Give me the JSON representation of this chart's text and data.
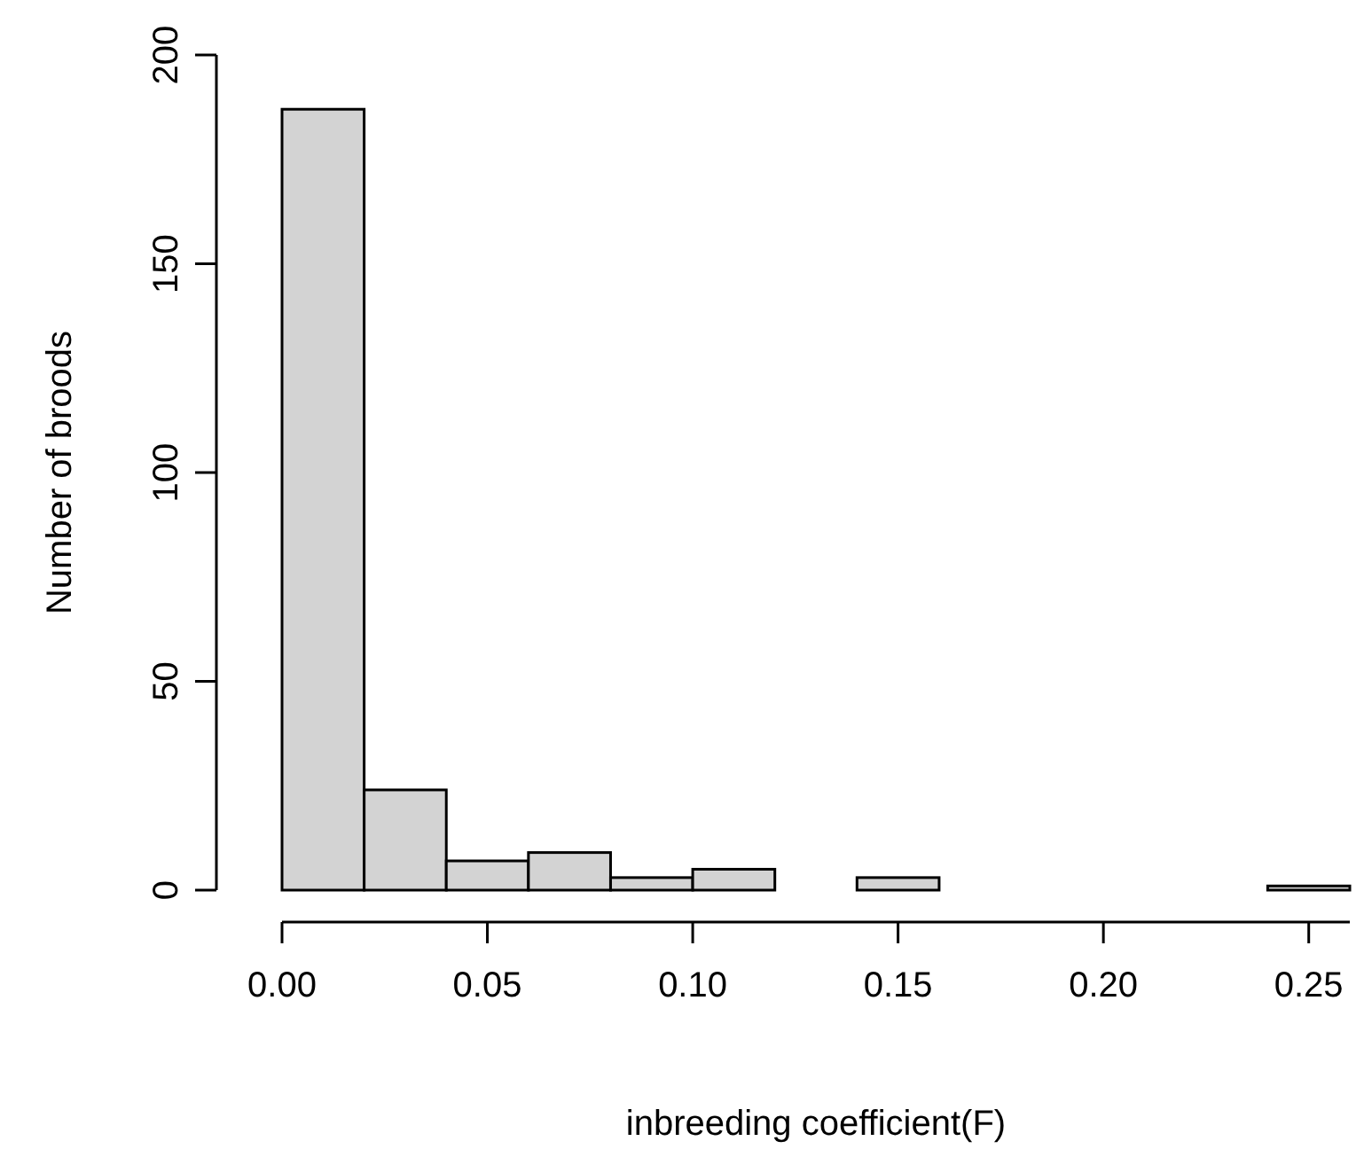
{
  "chart_data": {
    "type": "histogram",
    "xlabel": "inbreeding coefficient(F)",
    "ylabel": "Number of broods",
    "bins": [
      0,
      0.02,
      0.04,
      0.06,
      0.08,
      0.1,
      0.12,
      0.14,
      0.16,
      0.18,
      0.2,
      0.22,
      0.24,
      0.26
    ],
    "values": [
      187,
      24,
      7,
      9,
      3,
      5,
      0,
      3,
      0,
      0,
      0,
      0,
      1
    ],
    "color": "#d3d3d3",
    "xlim": [
      0,
      0.26
    ],
    "xticks": [
      {
        "value": 0,
        "label": "0.00"
      },
      {
        "value": 0.05,
        "label": "0.05"
      },
      {
        "value": 0.1,
        "label": "0.10"
      },
      {
        "value": 0.15,
        "label": "0.15"
      },
      {
        "value": 0.2,
        "label": "0.20"
      },
      {
        "value": 0.25,
        "label": "0.25"
      }
    ],
    "ylim": [
      0,
      200
    ],
    "yticks": [
      0,
      50,
      100,
      150,
      200
    ],
    "grid": false
  }
}
